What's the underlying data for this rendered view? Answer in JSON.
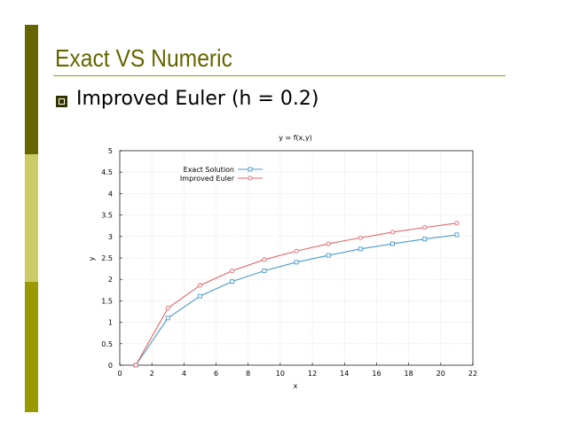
{
  "slide": {
    "title": "Exact VS Numeric",
    "bullet": "Improved Euler (h = 0.2)"
  },
  "colors": {
    "accent_dark": "#666600",
    "accent_light": "#cccc66",
    "accent_mid": "#999900",
    "exact": "#4a9acb",
    "euler": "#e06666",
    "grid": "#d8d8d8"
  },
  "chart_data": {
    "type": "line",
    "title": "y = f(x,y)",
    "xlabel": "x",
    "ylabel": "y",
    "xlim": [
      0,
      22
    ],
    "ylim": [
      0,
      5
    ],
    "xticks": [
      0,
      2,
      4,
      6,
      8,
      10,
      12,
      14,
      16,
      18,
      20,
      22
    ],
    "yticks": [
      0,
      0.5,
      1,
      1.5,
      2,
      2.5,
      3,
      3.5,
      4,
      4.5,
      5
    ],
    "grid": true,
    "legend": "top-left",
    "series": [
      {
        "name": "Exact Solution",
        "marker": "square",
        "x": [
          1,
          3,
          5,
          7,
          9,
          11,
          13,
          15,
          17,
          19,
          21
        ],
        "y": [
          0,
          1.1,
          1.61,
          1.95,
          2.2,
          2.4,
          2.56,
          2.71,
          2.83,
          2.94,
          3.04
        ]
      },
      {
        "name": "Improved Euler",
        "marker": "circle",
        "x": [
          1,
          3,
          5,
          7,
          9,
          11,
          13,
          15,
          17,
          19,
          21
        ],
        "y": [
          0,
          1.33,
          1.86,
          2.2,
          2.46,
          2.66,
          2.83,
          2.97,
          3.1,
          3.21,
          3.31
        ]
      }
    ]
  }
}
